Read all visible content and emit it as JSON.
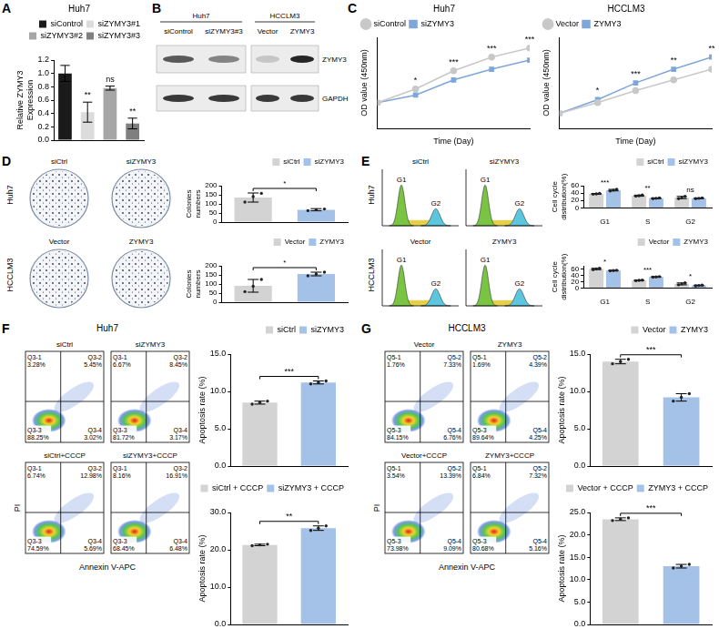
{
  "panel_letters": [
    "A",
    "B",
    "C",
    "D",
    "E",
    "F",
    "G"
  ],
  "chart_data": [
    {
      "type": "bar",
      "title": "Huh7",
      "categories": [
        "siControl",
        "siZYMY3#1",
        "siZYMY3#2",
        "siZYMY3#3"
      ],
      "values": [
        1.0,
        0.42,
        0.78,
        0.25
      ],
      "errors": [
        0.12,
        0.15,
        0.03,
        0.08
      ],
      "colors": [
        "#1a1a1a",
        "#dcdcdc",
        "#a6a6a6",
        "#7f7f7f"
      ],
      "y_label": "Relative ZYMY3 Expression",
      "ylim": [
        0,
        1.2
      ],
      "yticks": [
        {
          "value": 0,
          "label": "0.0"
        },
        0.2,
        0.4,
        0.6,
        0.8,
        {
          "value": 1,
          "label": "1.0"
        },
        1.2
      ],
      "legend": "top right",
      "tick_labels": "y",
      "grid": false,
      "annotations": [
        {
          "category": "siZYMY3#1",
          "text": "**"
        },
        {
          "category": "siZYMY3#2",
          "text": "ns"
        },
        {
          "category": "siZYMY3#3",
          "text": "**"
        }
      ]
    },
    {
      "type": "line",
      "title": "Huh7",
      "x": [
        0,
        1,
        2,
        3,
        4
      ],
      "xlim": [
        0,
        4
      ],
      "ylim": [
        0,
        3
      ],
      "x_label": "Time (Day)",
      "y_label": "OD value (450nm)",
      "tick_labels": false,
      "grid": false,
      "legend": "top left",
      "series": [
        {
          "name": "siControl",
          "color": "#c8c8c8",
          "marker": "circle",
          "values": [
            0.85,
            1.3,
            1.9,
            2.35,
            2.65
          ]
        },
        {
          "name": "siZYMY3",
          "color": "#7ea6d9",
          "marker": "square",
          "values": [
            0.85,
            1.1,
            1.6,
            1.95,
            2.25
          ]
        }
      ],
      "annotations": [
        {
          "x": 1,
          "text": "*"
        },
        {
          "x": 2,
          "text": "***"
        },
        {
          "x": 3,
          "text": "***"
        },
        {
          "x": 4,
          "text": "***"
        }
      ]
    },
    {
      "type": "line",
      "title": "HCCLM3",
      "x": [
        0,
        1,
        2,
        3,
        4
      ],
      "xlim": [
        0,
        4
      ],
      "ylim": [
        0,
        3
      ],
      "x_label": "Time (Day)",
      "y_label": "OD value (450nm)",
      "tick_labels": false,
      "grid": false,
      "legend": "top left",
      "series": [
        {
          "name": "Vector",
          "color": "#c8c8c8",
          "marker": "circle",
          "values": [
            0.5,
            0.85,
            1.25,
            1.6,
            1.95
          ]
        },
        {
          "name": "ZYMY3",
          "color": "#7ea6d9",
          "marker": "square",
          "values": [
            0.5,
            0.95,
            1.5,
            1.95,
            2.35
          ]
        }
      ],
      "annotations": [
        {
          "x": 1,
          "text": "*"
        },
        {
          "x": 2,
          "text": "***"
        },
        {
          "x": 3,
          "text": "**"
        },
        {
          "x": 4,
          "text": "**"
        }
      ]
    },
    {
      "type": "bar",
      "categories": [
        "siCtrl",
        "siZYMY3"
      ],
      "values": [
        135,
        68
      ],
      "errors": [
        25,
        6
      ],
      "points": [
        [
          110,
          140,
          158
        ],
        [
          63,
          68,
          72
        ]
      ],
      "colors": [
        "#d3d3d3",
        "#a4c2e8"
      ],
      "y_label": "Colonies numbers",
      "ylim": [
        0,
        200
      ],
      "yticks": [
        0,
        50,
        100,
        150,
        200
      ],
      "legend": "top right",
      "tick_labels": "y",
      "grid": false,
      "annotations": [
        {
          "categories": [
            "siCtrl",
            "siZYMY3"
          ],
          "text": "*"
        }
      ]
    },
    {
      "type": "bar",
      "categories": [
        "Vector",
        "ZYMY3"
      ],
      "values": [
        90,
        155
      ],
      "errors": [
        35,
        10
      ],
      "points": [
        [
          58,
          88,
          125
        ],
        [
          145,
          155,
          165
        ]
      ],
      "colors": [
        "#d3d3d3",
        "#a4c2e8"
      ],
      "y_label": "Colonies numbers",
      "ylim": [
        0,
        200
      ],
      "yticks": [
        0,
        50,
        100,
        150,
        200
      ],
      "legend": "top right",
      "tick_labels": "y",
      "grid": false,
      "annotations": [
        {
          "categories": [
            "Vector",
            "ZYMY3"
          ],
          "text": "*"
        }
      ]
    },
    {
      "type": "bar",
      "categories": [
        "G1",
        "S",
        "G2"
      ],
      "series": [
        {
          "name": "siCtrl",
          "color": "#d3d3d3",
          "values": [
            38,
            33,
            28
          ],
          "errors": [
            1,
            1.5,
            3
          ],
          "points": [
            [
              37,
              38,
              39
            ],
            [
              32,
              33,
              35
            ],
            [
              25,
              28,
              31
            ]
          ]
        },
        {
          "name": "siZYMY3",
          "color": "#a4c2e8",
          "values": [
            48,
            26,
            26
          ],
          "errors": [
            2,
            1,
            1
          ],
          "points": [
            [
              46,
              48,
              50
            ],
            [
              25,
              26,
              27
            ],
            [
              25,
              26,
              27
            ]
          ]
        }
      ],
      "y_label": "Cell cycle distribution(%)",
      "ylim": [
        0,
        60
      ],
      "yticks": [
        0,
        20,
        40,
        60
      ],
      "legend": "top right",
      "tick_labels": true,
      "grid": false,
      "annotations": [
        {
          "category": "G1",
          "text": "***"
        },
        {
          "category": "S",
          "text": "**"
        },
        {
          "category": "G2",
          "text": "ns"
        }
      ]
    },
    {
      "type": "bar",
      "categories": [
        "G1",
        "S",
        "G2"
      ],
      "series": [
        {
          "name": "Vector",
          "color": "#d3d3d3",
          "values": [
            60,
            24,
            13
          ],
          "errors": [
            2,
            1,
            3
          ],
          "points": [
            [
              58,
              60,
              62
            ],
            [
              23,
              24,
              25
            ],
            [
              10,
              13,
              16
            ]
          ]
        },
        {
          "name": "ZYMY3",
          "color": "#a4c2e8",
          "values": [
            55,
            35,
            8
          ],
          "errors": [
            1,
            1,
            1
          ],
          "points": [
            [
              54,
              55,
              56
            ],
            [
              34,
              35,
              36
            ],
            [
              7,
              8,
              9
            ]
          ]
        }
      ],
      "y_label": "Cell cycle distribution(%)",
      "ylim": [
        0,
        70
      ],
      "yticks": [
        0,
        20,
        40,
        60
      ],
      "legend": "top right",
      "tick_labels": true,
      "grid": false,
      "annotations": [
        {
          "category": "G1",
          "text": "*"
        },
        {
          "category": "S",
          "text": "***"
        },
        {
          "category": "G2",
          "text": "*"
        }
      ]
    },
    {
      "type": "bar",
      "categories": [
        "siCtrl",
        "siZYMY3"
      ],
      "values": [
        8.5,
        11.2
      ],
      "errors": [
        0.2,
        0.2
      ],
      "points": [
        [
          8.3,
          8.5,
          8.7
        ],
        [
          11.0,
          11.2,
          11.4
        ]
      ],
      "colors": [
        "#d3d3d3",
        "#a4c2e8"
      ],
      "y_label": "Apoptosis rate (%)",
      "ylim": [
        0,
        15
      ],
      "yticks": [
        {
          "value": 0,
          "label": "0.0"
        },
        {
          "value": 5,
          "label": "5.0"
        },
        {
          "value": 10,
          "label": "10.0"
        },
        {
          "value": 15,
          "label": "15.0"
        }
      ],
      "legend": "top right",
      "tick_labels": "y",
      "grid": false,
      "annotations": [
        {
          "categories": [
            "siCtrl",
            "siZYMY3"
          ],
          "text": "***"
        }
      ]
    },
    {
      "type": "bar",
      "categories": [
        "siCtrl + CCCP",
        "siZYMY3 + CCCP"
      ],
      "values": [
        21.3,
        25.8
      ],
      "errors": [
        0.2,
        0.6
      ],
      "points": [
        [
          21.1,
          21.3,
          21.5
        ],
        [
          25.2,
          25.8,
          26.4
        ]
      ],
      "colors": [
        "#d3d3d3",
        "#a4c2e8"
      ],
      "y_label": "Apoptosis rate (%)",
      "ylim": [
        0,
        30
      ],
      "yticks": [
        {
          "value": 0,
          "label": "0.0"
        },
        {
          "value": 10,
          "label": "10.0"
        },
        {
          "value": 20,
          "label": "20.0"
        },
        {
          "value": 30,
          "label": "30.0"
        }
      ],
      "legend": "top right",
      "tick_labels": "y",
      "grid": false,
      "annotations": [
        {
          "categories": [
            "siCtrl + CCCP",
            "siZYMY3 + CCCP"
          ],
          "text": "**"
        }
      ]
    },
    {
      "type": "bar",
      "categories": [
        "Vector",
        "ZYMY3"
      ],
      "values": [
        14.0,
        9.2
      ],
      "errors": [
        0.3,
        0.5
      ],
      "points": [
        [
          13.7,
          14.0,
          14.3
        ],
        [
          8.7,
          9.2,
          9.7
        ]
      ],
      "colors": [
        "#d3d3d3",
        "#a4c2e8"
      ],
      "y_label": "Apoptosis rate (%)",
      "ylim": [
        0,
        15
      ],
      "yticks": [
        {
          "value": 0,
          "label": "0.0"
        },
        {
          "value": 5,
          "label": "5.0"
        },
        {
          "value": 10,
          "label": "10.0"
        },
        {
          "value": 15,
          "label": "15.0"
        }
      ],
      "legend": "top right",
      "tick_labels": "y",
      "grid": false,
      "annotations": [
        {
          "categories": [
            "Vector",
            "ZYMY3"
          ],
          "text": "***"
        }
      ]
    },
    {
      "type": "bar",
      "categories": [
        "Vector + CCCP",
        "ZYMY3 + CCCP"
      ],
      "values": [
        23.5,
        13.0
      ],
      "errors": [
        0.3,
        0.4
      ],
      "points": [
        [
          23.2,
          23.5,
          23.8
        ],
        [
          12.6,
          13.0,
          13.4
        ]
      ],
      "colors": [
        "#d3d3d3",
        "#a4c2e8"
      ],
      "y_label": "Apoptosis rate (%)",
      "ylim": [
        0,
        25
      ],
      "yticks": [
        {
          "value": 0,
          "label": "0.0"
        },
        {
          "value": 5,
          "label": "5.0"
        },
        {
          "value": 10,
          "label": "10.0"
        },
        {
          "value": 15,
          "label": "15.0"
        },
        {
          "value": 20,
          "label": "20.0"
        },
        {
          "value": 25,
          "label": "25.0"
        }
      ],
      "legend": "top right",
      "tick_labels": "y",
      "grid": false,
      "annotations": [
        {
          "categories": [
            "Vector + CCCP",
            "ZYMY3 + CCCP"
          ],
          "text": "***"
        }
      ]
    }
  ],
  "western_blot": {
    "groups": [
      {
        "label": "Huh7",
        "lanes": [
          "siControl",
          "siZYMY3#3"
        ]
      },
      {
        "label": "HCCLM3",
        "lanes": [
          "Vector",
          "ZYMY3"
        ]
      }
    ],
    "rows": [
      "ZYMY3",
      "GAPDH"
    ]
  },
  "colony_images": {
    "rows": [
      {
        "label": "Huh7",
        "plots": [
          "siCtrl",
          "siZYMY3"
        ]
      },
      {
        "label": "HCCLM3",
        "plots": [
          "Vector",
          "ZYMY3"
        ]
      }
    ]
  },
  "cell_cycle_histograms": {
    "rows": [
      {
        "label": "Huh7",
        "plots": [
          "siCtrl",
          "siZYMY3"
        ]
      },
      {
        "label": "HCCLM3",
        "plots": [
          "Vector",
          "ZYMY3"
        ]
      }
    ],
    "peak_labels": [
      "G1",
      "G2"
    ]
  },
  "flow_plots": [
    {
      "title": "Huh7",
      "x_label": "Annexin V-APC",
      "y_label": "PI",
      "plots": [
        {
          "label": "siCtrl",
          "quadrants": [
            [
              "Q3-1",
              "3.28%"
            ],
            [
              "Q3-2",
              "5.45%"
            ],
            [
              "Q3-3",
              "88.25%"
            ],
            [
              "Q3-4",
              "3.02%"
            ]
          ]
        },
        {
          "label": "siZYMY3",
          "quadrants": [
            [
              "Q3-1",
              "6.67%"
            ],
            [
              "Q3-2",
              "8.45%"
            ],
            [
              "Q3-3",
              "81.72%"
            ],
            [
              "Q3-4",
              "3.17%"
            ]
          ]
        },
        {
          "label": "siCtrl+CCCP",
          "quadrants": [
            [
              "Q3-1",
              "6.74%"
            ],
            [
              "Q3-2",
              "12.98%"
            ],
            [
              "Q3-3",
              "74.59%"
            ],
            [
              "Q3-4",
              "5.69%"
            ]
          ]
        },
        {
          "label": "siZYMY3+CCCP",
          "quadrants": [
            [
              "Q3-1",
              "8.16%"
            ],
            [
              "Q3-2",
              "16.91%"
            ],
            [
              "Q3-3",
              "68.45%"
            ],
            [
              "Q3-4",
              "6.48%"
            ]
          ]
        }
      ]
    },
    {
      "title": "HCCLM3",
      "x_label": "Annexin V-APC",
      "y_label": "PI",
      "plots": [
        {
          "label": "Vector",
          "quadrants": [
            [
              "Q5-1",
              "1.76%"
            ],
            [
              "Q5-2",
              "7.33%"
            ],
            [
              "Q5-3",
              "84.15%"
            ],
            [
              "Q5-4",
              "6.76%"
            ]
          ]
        },
        {
          "label": "ZYMY3",
          "quadrants": [
            [
              "Q5-1",
              "1.69%"
            ],
            [
              "Q5-2",
              "4.39%"
            ],
            [
              "Q5-3",
              "89.64%"
            ],
            [
              "Q5-4",
              "4.25%"
            ]
          ]
        },
        {
          "label": "Vector+CCCP",
          "quadrants": [
            [
              "Q5-1",
              "3.54%"
            ],
            [
              "Q5-2",
              "13.39%"
            ],
            [
              "Q5-3",
              "73.98%"
            ],
            [
              "Q5-4",
              "9.09%"
            ]
          ]
        },
        {
          "label": "ZYMY3+CCCP",
          "quadrants": [
            [
              "Q5-1",
              "6.84%"
            ],
            [
              "Q5-2",
              "7.32%"
            ],
            [
              "Q5-3",
              "80.68%"
            ],
            [
              "Q5-4",
              "5.16%"
            ]
          ]
        }
      ]
    }
  ]
}
